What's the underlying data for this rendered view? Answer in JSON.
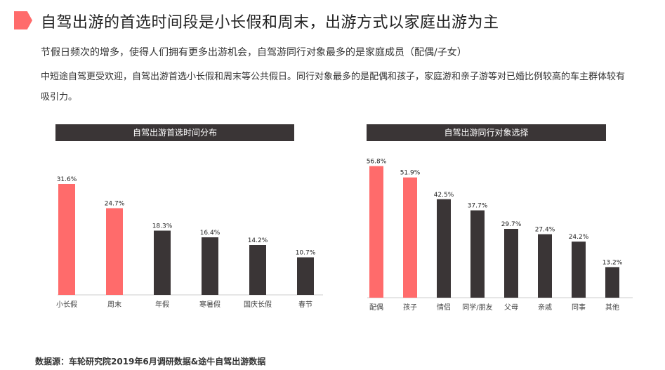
{
  "page": {
    "title": "自驾出游的首选时间段是小长假和周末，出游方式以家庭出游为主",
    "subtitle": "节假日频次的增多，使得人们拥有更多出游机会，自驾游同行对象最多的是家庭成员（配偶/子女）",
    "description": "中短途自驾更受欢迎，自驾出游首选小长假和周末等公共假日。同行对象最多的是配偶和孩子，家庭游和亲子游等对已婚比例较高的车主群体较有吸引力。",
    "source": "数据源：车轮研究院2019年6月调研数据&途牛自驾出游数据"
  },
  "colors": {
    "accent": "#ff6b6b",
    "dark": "#3a3536",
    "header_bg": "#3a3536"
  },
  "chart_data": [
    {
      "type": "bar",
      "title": "自驾出游首选时间分布",
      "categories": [
        "小长假",
        "周末",
        "年假",
        "寒暑假",
        "国庆长假",
        "春节"
      ],
      "values": [
        31.6,
        24.7,
        18.3,
        16.4,
        14.2,
        10.7
      ],
      "labels": [
        "31.6%",
        "24.7%",
        "18.3%",
        "16.4%",
        "14.2%",
        "10.7%"
      ],
      "highlight": [
        true,
        true,
        false,
        false,
        false,
        false
      ],
      "unit": "%",
      "ylim": [
        0,
        35
      ],
      "grid": false
    },
    {
      "type": "bar",
      "title": "自驾出游同行对象选择",
      "categories": [
        "配偶",
        "孩子",
        "情侣",
        "同学/朋友",
        "父母",
        "亲戚",
        "同事",
        "其他"
      ],
      "values": [
        56.8,
        51.9,
        42.5,
        37.7,
        29.7,
        27.4,
        24.2,
        13.2
      ],
      "labels": [
        "56.8%",
        "51.9%",
        "42.5%",
        "37.7%",
        "29.7%",
        "27.4%",
        "24.2%",
        "13.2%"
      ],
      "highlight": [
        true,
        true,
        false,
        false,
        false,
        false,
        false,
        false
      ],
      "unit": "%",
      "ylim": [
        0,
        60
      ],
      "grid": false
    }
  ]
}
